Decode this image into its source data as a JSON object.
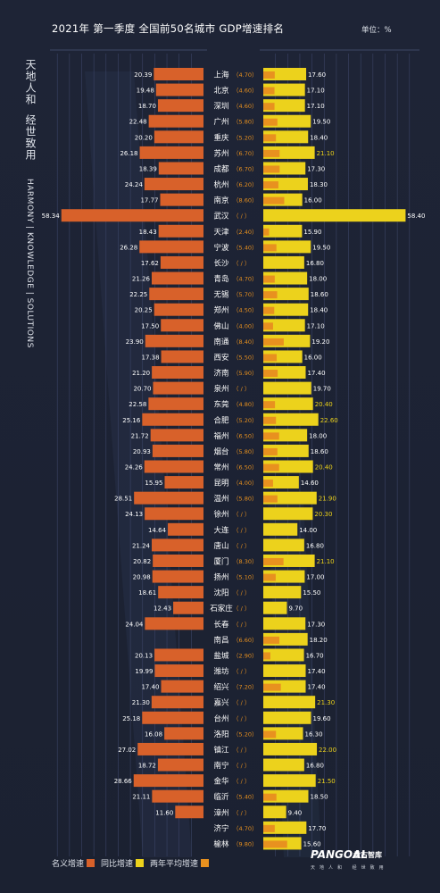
{
  "header": {
    "title": "2021年  第一季度  全国前50名城市  GDP增速排名",
    "unit": "单位：%"
  },
  "sidebar": {
    "cn_line1": "天地人和",
    "cn_line2": "经世致用",
    "en": "HARMONY | KNOWLEDGE | SOLUTIONS"
  },
  "legend": {
    "nominal": "名义增速",
    "yoy": "同比增速",
    "two_year_avg": "两年平均增速"
  },
  "brand": {
    "logo": "PANGOAL",
    "logo_cn": "盘古智库",
    "tagline": "天地人和 经世致用"
  },
  "colors": {
    "background": "#1c2233",
    "nominal": "#d8612a",
    "yoy": "#ecd21c",
    "two_year_avg": "#e8911f",
    "grid": "#3b4466"
  },
  "chart_data": {
    "type": "bar",
    "title": "2021年  第一季度  全国前50名城市  GDP增速排名",
    "unit": "%",
    "left_series": {
      "name": "名义增速",
      "axis_min": 0,
      "axis_max": 60,
      "direction": "leftward"
    },
    "right_series": {
      "name": "同比增速",
      "axis_min": 0,
      "axis_max": 60
    },
    "overlay_series": {
      "name": "两年平均增速"
    },
    "rows": [
      {
        "city": "上海",
        "avg": 4.7,
        "avg_label": "（4.70）",
        "nominal": 20.39,
        "nominal_label": "20.39",
        "yoy": 17.6,
        "yoy_label": "17.60"
      },
      {
        "city": "北京",
        "avg": 4.6,
        "avg_label": "（4.60）",
        "nominal": 19.48,
        "nominal_label": "19.48",
        "yoy": 17.1,
        "yoy_label": "17.10"
      },
      {
        "city": "深圳",
        "avg": 4.6,
        "avg_label": "（4.60）",
        "nominal": 18.7,
        "nominal_label": "18.70",
        "yoy": 17.1,
        "yoy_label": "17.10"
      },
      {
        "city": "广州",
        "avg": 5.8,
        "avg_label": "（5.80）",
        "nominal": 22.48,
        "nominal_label": "22.48",
        "yoy": 19.5,
        "yoy_label": "19.50"
      },
      {
        "city": "重庆",
        "avg": 5.2,
        "avg_label": "（5.20）",
        "nominal": 20.2,
        "nominal_label": "20.20",
        "yoy": 18.4,
        "yoy_label": "18.40"
      },
      {
        "city": "苏州",
        "avg": 6.7,
        "avg_label": "（6.70）",
        "nominal": 26.18,
        "nominal_label": "26.18",
        "yoy": 21.1,
        "yoy_label": "21.10"
      },
      {
        "city": "成都",
        "avg": 6.7,
        "avg_label": "（6.70）",
        "nominal": 18.39,
        "nominal_label": "18.39",
        "yoy": 17.3,
        "yoy_label": "17.30"
      },
      {
        "city": "杭州",
        "avg": 6.2,
        "avg_label": "（6.20）",
        "nominal": 24.24,
        "nominal_label": "24.24",
        "yoy": 18.3,
        "yoy_label": "18.30"
      },
      {
        "city": "南京",
        "avg": 8.6,
        "avg_label": "（8.60）",
        "nominal": 17.77,
        "nominal_label": "17.77",
        "yoy": 16.0,
        "yoy_label": "16.00"
      },
      {
        "city": "武汉",
        "avg": null,
        "avg_label": "（ / ）",
        "nominal": 58.34,
        "nominal_label": "58.34",
        "yoy": 58.4,
        "yoy_label": "58.40"
      },
      {
        "city": "天津",
        "avg": 2.4,
        "avg_label": "（2.40）",
        "nominal": 18.43,
        "nominal_label": "18.43",
        "yoy": 15.9,
        "yoy_label": "15.90"
      },
      {
        "city": "宁波",
        "avg": 5.4,
        "avg_label": "（5.40）",
        "nominal": 26.28,
        "nominal_label": "26.28",
        "yoy": 19.5,
        "yoy_label": "19.50"
      },
      {
        "city": "长沙",
        "avg": null,
        "avg_label": "（ / ）",
        "nominal": 17.62,
        "nominal_label": "17.62",
        "yoy": 16.8,
        "yoy_label": "16.80"
      },
      {
        "city": "青岛",
        "avg": 4.7,
        "avg_label": "（4.70）",
        "nominal": 21.26,
        "nominal_label": "21.26",
        "yoy": 18.0,
        "yoy_label": "18.00"
      },
      {
        "city": "无锡",
        "avg": 5.7,
        "avg_label": "（5.70）",
        "nominal": 22.25,
        "nominal_label": "22.25",
        "yoy": 18.6,
        "yoy_label": "18.60"
      },
      {
        "city": "郑州",
        "avg": 4.5,
        "avg_label": "（4.50）",
        "nominal": 20.25,
        "nominal_label": "20.25",
        "yoy": 18.4,
        "yoy_label": "18.40"
      },
      {
        "city": "佛山",
        "avg": 4.0,
        "avg_label": "（4.00）",
        "nominal": 17.5,
        "nominal_label": "17.50",
        "yoy": 17.1,
        "yoy_label": "17.10"
      },
      {
        "city": "南通",
        "avg": 8.4,
        "avg_label": "（8.40）",
        "nominal": 23.9,
        "nominal_label": "23.90",
        "yoy": 19.2,
        "yoy_label": "19.20"
      },
      {
        "city": "西安",
        "avg": 5.5,
        "avg_label": "（5.50）",
        "nominal": 17.38,
        "nominal_label": "17.38",
        "yoy": 16.0,
        "yoy_label": "16.00"
      },
      {
        "city": "济南",
        "avg": 5.9,
        "avg_label": "（5.90）",
        "nominal": 21.2,
        "nominal_label": "21.20",
        "yoy": 17.4,
        "yoy_label": "17.40"
      },
      {
        "city": "泉州",
        "avg": null,
        "avg_label": "（ / ）",
        "nominal": 20.7,
        "nominal_label": "20.70",
        "yoy": 19.7,
        "yoy_label": "19.70"
      },
      {
        "city": "东莞",
        "avg": 4.8,
        "avg_label": "（4.80）",
        "nominal": 22.58,
        "nominal_label": "22.58",
        "yoy": 20.4,
        "yoy_label": "20.40"
      },
      {
        "city": "合肥",
        "avg": 5.2,
        "avg_label": "（5.20）",
        "nominal": 25.16,
        "nominal_label": "25.16",
        "yoy": 22.6,
        "yoy_label": "22.60"
      },
      {
        "city": "福州",
        "avg": 6.5,
        "avg_label": "（6.50）",
        "nominal": 21.72,
        "nominal_label": "21.72",
        "yoy": 18.0,
        "yoy_label": "18.00"
      },
      {
        "city": "烟台",
        "avg": 5.8,
        "avg_label": "（5.80）",
        "nominal": 20.93,
        "nominal_label": "20.93",
        "yoy": 18.6,
        "yoy_label": "18.60"
      },
      {
        "city": "常州",
        "avg": 6.5,
        "avg_label": "（6.50）",
        "nominal": 24.26,
        "nominal_label": "24.26",
        "yoy": 20.4,
        "yoy_label": "20.40"
      },
      {
        "city": "昆明",
        "avg": 4.0,
        "avg_label": "（4.00）",
        "nominal": 15.95,
        "nominal_label": "15.95",
        "yoy": 14.6,
        "yoy_label": "14.60"
      },
      {
        "city": "温州",
        "avg": 5.8,
        "avg_label": "（5.80）",
        "nominal": 28.51,
        "nominal_label": "28.51",
        "yoy": 21.9,
        "yoy_label": "21.90"
      },
      {
        "city": "徐州",
        "avg": null,
        "avg_label": "（ / ）",
        "nominal": 24.13,
        "nominal_label": "24.13",
        "yoy": 20.3,
        "yoy_label": "20.30"
      },
      {
        "city": "大连",
        "avg": null,
        "avg_label": "（ / ）",
        "nominal": 14.64,
        "nominal_label": "14.64",
        "yoy": 14.0,
        "yoy_label": "14.00"
      },
      {
        "city": "唐山",
        "avg": null,
        "avg_label": "（ / ）",
        "nominal": 21.24,
        "nominal_label": "21.24",
        "yoy": 16.8,
        "yoy_label": "16.80"
      },
      {
        "city": "厦门",
        "avg": 8.3,
        "avg_label": "（8.30）",
        "nominal": 20.82,
        "nominal_label": "20.82",
        "yoy": 21.1,
        "yoy_label": "21.10"
      },
      {
        "city": "扬州",
        "avg": 5.1,
        "avg_label": "（5.10）",
        "nominal": 20.98,
        "nominal_label": "20.98",
        "yoy": 17.0,
        "yoy_label": "17.00"
      },
      {
        "city": "沈阳",
        "avg": null,
        "avg_label": "（ / ）",
        "nominal": 18.61,
        "nominal_label": "18.61",
        "yoy": 15.5,
        "yoy_label": "15.50"
      },
      {
        "city": "石家庄",
        "avg": null,
        "avg_label": "（ / ）",
        "nominal": 12.43,
        "nominal_label": "12.43",
        "yoy": 9.7,
        "yoy_label": "9.70"
      },
      {
        "city": "长春",
        "avg": null,
        "avg_label": "（ / ）",
        "nominal": 24.04,
        "nominal_label": "24.04",
        "yoy": 17.3,
        "yoy_label": "17.30"
      },
      {
        "city": "南昌",
        "avg": 6.6,
        "avg_label": "（6.60）",
        "nominal": null,
        "nominal_label": "",
        "yoy": 18.2,
        "yoy_label": "18.20"
      },
      {
        "city": "盐城",
        "avg": 2.9,
        "avg_label": "（2.90）",
        "nominal": 20.13,
        "nominal_label": "20.13",
        "yoy": 16.7,
        "yoy_label": "16.70"
      },
      {
        "city": "潍坊",
        "avg": null,
        "avg_label": "（ / ）",
        "nominal": 19.99,
        "nominal_label": "19.99",
        "yoy": 17.4,
        "yoy_label": "17.40"
      },
      {
        "city": "绍兴",
        "avg": 7.2,
        "avg_label": "（7.20）",
        "nominal": 17.4,
        "nominal_label": "17.40",
        "yoy": 17.4,
        "yoy_label": "17.40"
      },
      {
        "city": "嘉兴",
        "avg": null,
        "avg_label": "（ / ）",
        "nominal": 21.3,
        "nominal_label": "21.30",
        "yoy": 21.3,
        "yoy_label": "21.30"
      },
      {
        "city": "台州",
        "avg": null,
        "avg_label": "（ / ）",
        "nominal": 25.18,
        "nominal_label": "25.18",
        "yoy": 19.6,
        "yoy_label": "19.60"
      },
      {
        "city": "洛阳",
        "avg": 5.2,
        "avg_label": "（5.20）",
        "nominal": 16.08,
        "nominal_label": "16.08",
        "yoy": 16.3,
        "yoy_label": "16.30"
      },
      {
        "city": "镇江",
        "avg": null,
        "avg_label": "（ / ）",
        "nominal": 27.02,
        "nominal_label": "27.02",
        "yoy": 22.0,
        "yoy_label": "22.00"
      },
      {
        "city": "南宁",
        "avg": null,
        "avg_label": "（ / ）",
        "nominal": 18.72,
        "nominal_label": "18.72",
        "yoy": 16.8,
        "yoy_label": "16.80"
      },
      {
        "city": "金华",
        "avg": null,
        "avg_label": "（ / ）",
        "nominal": 28.66,
        "nominal_label": "28.66",
        "yoy": 21.5,
        "yoy_label": "21.50"
      },
      {
        "city": "临沂",
        "avg": 5.4,
        "avg_label": "（5.40）",
        "nominal": 21.11,
        "nominal_label": "21.11",
        "yoy": 18.5,
        "yoy_label": "18.50"
      },
      {
        "city": "漳州",
        "avg": null,
        "avg_label": "（ / ）",
        "nominal": 11.6,
        "nominal_label": "11.60",
        "yoy": 9.4,
        "yoy_label": "9.40"
      },
      {
        "city": "济宁",
        "avg": 4.7,
        "avg_label": "（4.70）",
        "nominal": null,
        "nominal_label": "",
        "yoy": 17.7,
        "yoy_label": "17.70"
      },
      {
        "city": "榆林",
        "avg": 9.8,
        "avg_label": "（9.80）",
        "nominal": null,
        "nominal_label": "",
        "yoy": 15.6,
        "yoy_label": "15.60"
      }
    ]
  }
}
